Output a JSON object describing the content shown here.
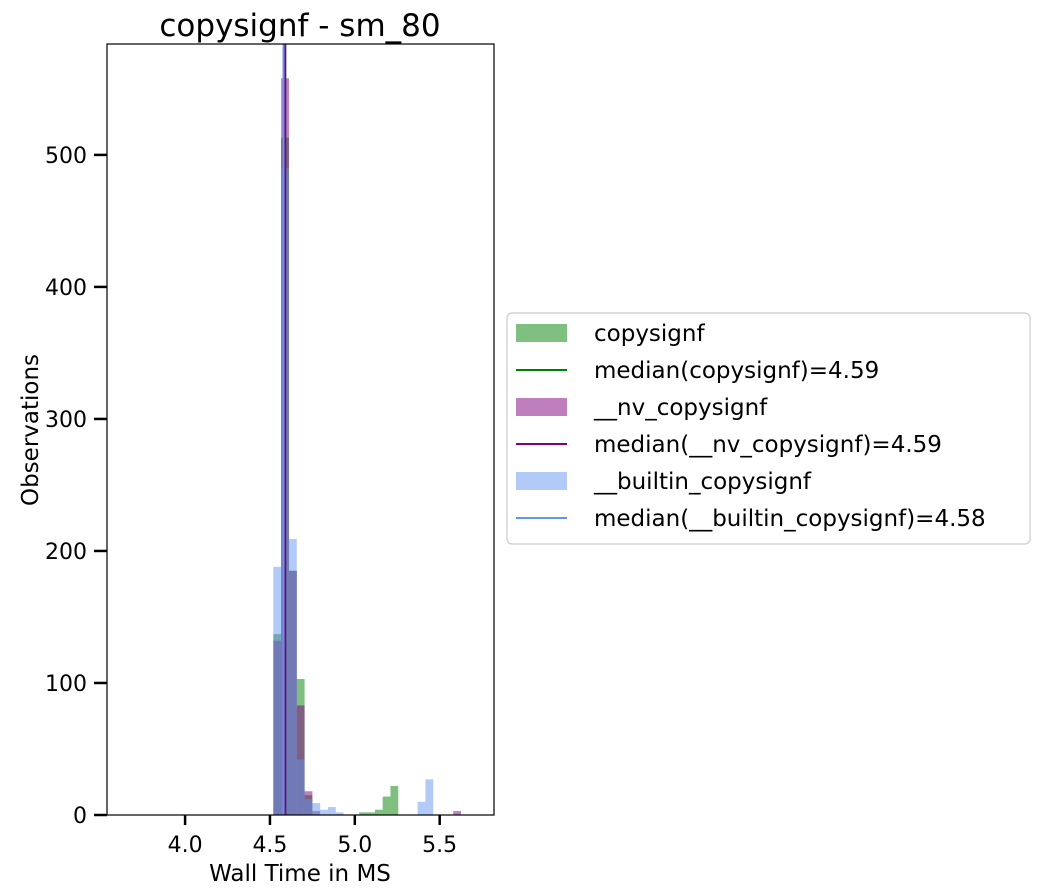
{
  "chart_data": {
    "type": "histogram",
    "title": "copysignf - sm_80",
    "xlabel": "Wall Time in MS",
    "ylabel": "Observations",
    "xlim": [
      3.54,
      5.82
    ],
    "ylim": [
      0,
      584
    ],
    "xticks": [
      4.0,
      4.5,
      5.0,
      5.5
    ],
    "xtick_labels": [
      "4.0",
      "4.5",
      "5.0",
      "5.5"
    ],
    "yticks": [
      0,
      100,
      200,
      300,
      400,
      500
    ],
    "ytick_labels": [
      "0",
      "100",
      "200",
      "300",
      "400",
      "500"
    ],
    "grid": false,
    "legend_placement": "right-outside",
    "bin_width": 0.046,
    "series": [
      {
        "name": "copysignf",
        "color": "#008000",
        "opacity": 0.5,
        "bins": [
          {
            "x": 4.52,
            "value": 137
          },
          {
            "x": 4.566,
            "value": 513
          },
          {
            "x": 4.612,
            "value": 185
          },
          {
            "x": 4.658,
            "value": 103
          },
          {
            "x": 4.704,
            "value": 15
          },
          {
            "x": 5.026,
            "value": 2
          },
          {
            "x": 5.072,
            "value": 2
          },
          {
            "x": 5.118,
            "value": 4
          },
          {
            "x": 5.164,
            "value": 14
          },
          {
            "x": 5.21,
            "value": 22
          }
        ]
      },
      {
        "name": "__nv_copysignf",
        "color": "#800080",
        "opacity": 0.5,
        "bins": [
          {
            "x": 4.52,
            "value": 132
          },
          {
            "x": 4.566,
            "value": 558
          },
          {
            "x": 4.612,
            "value": 185
          },
          {
            "x": 4.658,
            "value": 83
          },
          {
            "x": 4.704,
            "value": 18
          },
          {
            "x": 4.75,
            "value": 3
          },
          {
            "x": 5.58,
            "value": 3
          }
        ]
      },
      {
        "name": "__builtin_copysignf",
        "color": "#6495ED",
        "opacity": 0.5,
        "bins": [
          {
            "x": 4.52,
            "value": 188
          },
          {
            "x": 4.566,
            "value": 490
          },
          {
            "x": 4.612,
            "value": 209
          },
          {
            "x": 4.658,
            "value": 42
          },
          {
            "x": 4.704,
            "value": 12
          },
          {
            "x": 4.75,
            "value": 9
          },
          {
            "x": 4.796,
            "value": 4
          },
          {
            "x": 4.842,
            "value": 6
          },
          {
            "x": 4.888,
            "value": 2
          },
          {
            "x": 5.37,
            "value": 10
          },
          {
            "x": 5.416,
            "value": 27
          }
        ]
      }
    ],
    "medians": [
      {
        "name": "median(copysignf)=4.59",
        "x": 4.59,
        "color": "#008000"
      },
      {
        "name": "median(__nv_copysignf)=4.59",
        "x": 4.59,
        "color": "#800080"
      },
      {
        "name": "median(__builtin_copysignf)=4.58",
        "x": 4.58,
        "color": "#6495ED"
      }
    ],
    "legend": [
      {
        "label": "copysignf",
        "kind": "patch",
        "color": "#008000"
      },
      {
        "label": "median(copysignf)=4.59",
        "kind": "line",
        "color": "#008000"
      },
      {
        "label": "__nv_copysignf",
        "kind": "patch",
        "color": "#800080"
      },
      {
        "label": "median(__nv_copysignf)=4.59",
        "kind": "line",
        "color": "#800080"
      },
      {
        "label": "__builtin_copysignf",
        "kind": "patch",
        "color": "#6495ED"
      },
      {
        "label": "median(__builtin_copysignf)=4.58",
        "kind": "line",
        "color": "#6495ED"
      }
    ]
  }
}
